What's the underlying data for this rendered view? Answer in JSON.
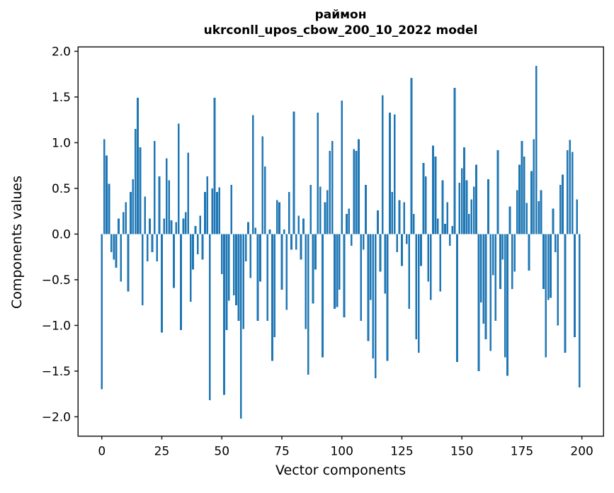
{
  "title": {
    "line1": "раймон",
    "line2": "ukrconll_upos_cbow_200_10_2022 model"
  },
  "axes": {
    "x_label": "Vector components",
    "y_label": "Components values",
    "x_ticks": [
      0,
      25,
      50,
      75,
      100,
      125,
      150,
      175,
      200
    ],
    "y_ticks": [
      2.0,
      1.5,
      1.0,
      0.5,
      0.0,
      -0.5,
      -1.0,
      -1.5,
      -2.0
    ],
    "x_range": [
      -9.95,
      208.95
    ],
    "y_range": [
      -2.21,
      2.05
    ],
    "grid": false
  },
  "chart_data": {
    "type": "bar",
    "title": "раймон\nukrconll_upos_cbow_200_10_2022 model",
    "xlabel": "Vector components",
    "ylabel": "Components values",
    "xlim": [
      -9.95,
      208.95
    ],
    "ylim": [
      -2.21,
      2.05
    ],
    "bar_color": "#1f77b4",
    "x_start": 0,
    "x_step": 1,
    "values": [
      -1.7,
      1.04,
      0.86,
      0.55,
      -0.2,
      -0.28,
      -0.37,
      0.17,
      -0.52,
      0.24,
      0.35,
      -0.63,
      0.46,
      0.6,
      1.15,
      1.49,
      0.95,
      -0.78,
      0.41,
      -0.3,
      0.17,
      -0.2,
      1.02,
      -0.3,
      0.63,
      -1.08,
      0.17,
      0.83,
      0.59,
      0.15,
      -0.59,
      0.13,
      1.21,
      -1.05,
      0.17,
      0.24,
      0.89,
      -0.74,
      -0.39,
      0.09,
      -0.22,
      0.2,
      -0.28,
      0.46,
      0.63,
      -1.82,
      0.5,
      1.49,
      0.46,
      0.51,
      -0.44,
      -1.76,
      -1.05,
      -0.73,
      0.54,
      -0.67,
      -0.78,
      -0.95,
      -2.02,
      -1.04,
      -0.3,
      0.13,
      -0.48,
      1.3,
      0.07,
      -0.95,
      -0.52,
      1.07,
      0.74,
      -0.95,
      0.05,
      -1.39,
      -1.13,
      0.37,
      0.35,
      -0.61,
      0.05,
      -0.83,
      0.46,
      -0.17,
      1.34,
      -0.17,
      0.2,
      -0.28,
      0.17,
      -1.04,
      -1.54,
      0.54,
      -0.76,
      -0.39,
      1.33,
      0.52,
      -1.35,
      0.35,
      0.48,
      0.91,
      1.02,
      -0.82,
      -0.8,
      -0.61,
      1.46,
      -0.91,
      0.22,
      0.28,
      -0.13,
      0.93,
      0.91,
      1.04,
      -0.95,
      -0.17,
      0.54,
      -1.17,
      -0.72,
      -1.36,
      -1.58,
      0.26,
      -0.41,
      1.52,
      -0.65,
      -1.39,
      1.33,
      0.46,
      1.31,
      -0.2,
      0.37,
      -0.35,
      0.35,
      -0.11,
      -0.82,
      1.71,
      0.22,
      -1.15,
      -1.3,
      -0.35,
      0.78,
      0.63,
      -0.52,
      -0.72,
      0.97,
      0.85,
      0.17,
      -0.63,
      0.59,
      0.11,
      0.35,
      -0.13,
      0.09,
      1.6,
      -1.4,
      0.56,
      0.72,
      0.95,
      0.59,
      0.22,
      0.38,
      0.52,
      0.76,
      -1.5,
      -0.75,
      -0.98,
      -1.15,
      0.6,
      -1.28,
      -0.45,
      -0.95,
      0.92,
      -0.6,
      -0.28,
      -1.35,
      -1.55,
      0.3,
      -0.6,
      -0.41,
      0.48,
      0.76,
      1.02,
      0.85,
      0.34,
      -0.4,
      0.69,
      1.04,
      1.84,
      0.36,
      0.48,
      -0.6,
      -1.35,
      -0.72,
      -0.7,
      0.28,
      -0.2,
      -1.0,
      0.54,
      0.65,
      -1.3,
      0.92,
      1.03,
      0.9,
      -1.13,
      0.38,
      -1.68
    ]
  },
  "style": {
    "spine_color": "#1a1a1a",
    "background": "#ffffff"
  }
}
